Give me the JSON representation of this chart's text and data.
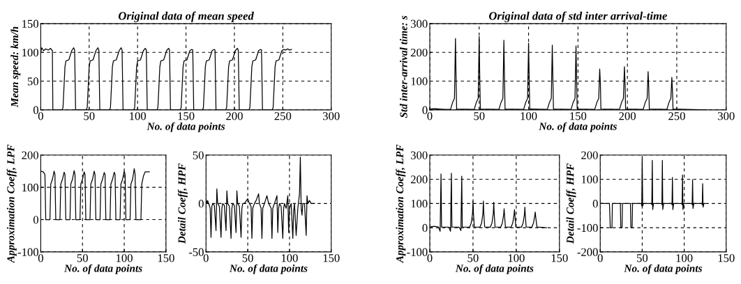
{
  "chart_data": [
    {
      "type": "line",
      "title": "Original data of mean speed",
      "xlabel": "No. of data points",
      "ylabel": "Mean speed: km/h",
      "xlim": [
        0,
        300
      ],
      "ylim": [
        0,
        150
      ],
      "xticks": [
        0,
        50,
        100,
        150,
        200,
        250,
        300
      ],
      "yticks": [
        0,
        50,
        100,
        150
      ],
      "grid": true,
      "line_style": "solid",
      "series": [
        {
          "color": "#000000",
          "x": [
            0,
            1,
            3,
            5,
            8,
            10,
            12,
            12.5,
            22,
            23,
            25,
            26,
            29,
            32,
            34,
            35,
            36,
            47,
            48,
            50,
            51,
            54,
            57,
            59,
            60,
            61,
            71,
            72,
            74,
            75,
            78,
            81,
            83,
            84,
            85,
            96,
            97,
            99,
            100,
            103,
            106,
            108,
            109,
            110,
            120,
            121,
            123,
            124,
            127,
            130,
            132,
            133,
            134,
            144,
            145,
            147,
            148,
            151,
            154,
            156,
            157,
            158,
            167,
            168,
            170,
            171,
            174,
            177,
            179,
            180,
            181,
            191,
            192,
            194,
            195,
            198,
            201,
            203,
            204,
            205,
            215,
            216,
            218,
            219,
            222,
            225,
            227,
            228,
            229,
            239,
            240,
            242,
            243,
            246,
            249,
            251,
            253,
            255,
            257,
            259
          ],
          "values": [
            100,
            108,
            103,
            106,
            104,
            107,
            103,
            0,
            0,
            4,
            75,
            85,
            87,
            103,
            108,
            104,
            0,
            0,
            4,
            75,
            85,
            87,
            103,
            108,
            104,
            0,
            0,
            4,
            75,
            85,
            87,
            103,
            108,
            104,
            0,
            0,
            4,
            75,
            85,
            87,
            103,
            107,
            104,
            0,
            0,
            4,
            75,
            85,
            87,
            103,
            107,
            104,
            0,
            0,
            4,
            75,
            85,
            87,
            103,
            105,
            104,
            0,
            0,
            4,
            75,
            85,
            87,
            103,
            105,
            104,
            0,
            0,
            4,
            75,
            85,
            87,
            103,
            107,
            104,
            0,
            0,
            4,
            75,
            85,
            87,
            103,
            105,
            104,
            0,
            0,
            4,
            75,
            85,
            87,
            103,
            105,
            104,
            106,
            104,
            105
          ]
        }
      ]
    },
    {
      "type": "line",
      "title": "Original data of std inter arrival-time",
      "xlabel": "No. of data points",
      "ylabel": "Std inter-arrival time: s",
      "xlim": [
        0,
        300
      ],
      "ylim": [
        0,
        300
      ],
      "xticks": [
        0,
        50,
        100,
        150,
        200,
        250,
        300
      ],
      "yticks": [
        0,
        100,
        200,
        300
      ],
      "grid": true,
      "line_style": "solid",
      "series": [
        {
          "color": "#000000",
          "x": [
            0,
            5,
            10,
            15,
            21,
            23,
            25,
            26,
            26.7,
            27.2,
            45,
            47,
            49,
            50,
            50.7,
            51.2,
            70,
            72,
            74,
            75,
            75.7,
            76.2,
            95,
            97,
            99,
            100,
            100.7,
            101.2,
            119,
            121,
            123,
            124,
            124.7,
            125.2,
            143,
            145,
            147,
            148,
            148.7,
            149.2,
            167,
            169,
            171,
            172,
            172.7,
            173.2,
            192,
            194,
            196,
            197,
            197.7,
            198.2,
            216,
            218,
            220,
            221,
            221.7,
            222.2,
            240,
            242,
            244,
            245,
            245.7,
            246.2,
            260,
            280
          ],
          "values": [
            3,
            4,
            3,
            2,
            2,
            25,
            40,
            248,
            90,
            3,
            2,
            25,
            40,
            255,
            90,
            3,
            2,
            25,
            40,
            242,
            90,
            3,
            2,
            25,
            40,
            232,
            90,
            3,
            2,
            25,
            40,
            225,
            90,
            3,
            2,
            25,
            40,
            222,
            90,
            3,
            2,
            25,
            40,
            142,
            90,
            3,
            2,
            25,
            40,
            150,
            90,
            3,
            2,
            25,
            40,
            133,
            70,
            3,
            2,
            25,
            40,
            113,
            60,
            3,
            2,
            0
          ]
        }
      ]
    },
    {
      "type": "line",
      "xlabel": "No. of data points",
      "ylabel": "Approximation Coeff, LPF",
      "xlim": [
        0,
        150
      ],
      "ylim": [
        -100,
        200
      ],
      "xticks": [
        0,
        50,
        100,
        150
      ],
      "yticks": [
        -100,
        0,
        100,
        200
      ],
      "grid": true,
      "line_style": "solid",
      "series": [
        {
          "color": "#000000",
          "x": [
            0,
            3,
            5,
            6,
            11,
            12,
            14,
            16,
            17,
            18,
            23,
            24,
            26,
            28,
            29,
            30,
            35,
            36,
            38,
            40,
            41,
            42,
            47,
            48,
            50,
            52,
            53,
            54,
            59,
            60,
            62,
            64,
            65,
            66,
            71,
            72,
            74,
            76,
            77,
            78,
            83,
            84,
            86,
            88,
            89,
            90,
            95,
            96,
            98,
            100,
            101,
            102,
            107,
            108,
            110,
            112,
            113,
            114,
            120,
            121,
            123,
            125,
            130
          ],
          "values": [
            150,
            148,
            140,
            0,
            0,
            110,
            125,
            150,
            140,
            0,
            0,
            110,
            125,
            147,
            140,
            0,
            0,
            110,
            125,
            152,
            140,
            0,
            0,
            110,
            125,
            148,
            140,
            0,
            0,
            110,
            125,
            150,
            140,
            0,
            0,
            110,
            125,
            146,
            140,
            0,
            0,
            110,
            125,
            147,
            140,
            0,
            0,
            110,
            125,
            150,
            140,
            0,
            0,
            110,
            125,
            158,
            140,
            0,
            0,
            110,
            135,
            148,
            148
          ]
        }
      ]
    },
    {
      "type": "line",
      "xlabel": "No. of data points",
      "ylabel": "Detail Coeff, HPF",
      "xlim": [
        0,
        150
      ],
      "ylim": [
        -50,
        50
      ],
      "xticks": [
        0,
        50,
        100,
        150
      ],
      "yticks": [
        -50,
        0,
        50
      ],
      "grid": true,
      "line_style": "solid",
      "series": [
        {
          "color": "#000000",
          "x": [
            0,
            1,
            2,
            3,
            4,
            5,
            6,
            7,
            8,
            10,
            12,
            13,
            14,
            16,
            18,
            19,
            20,
            22,
            24,
            25,
            26,
            28,
            30,
            31,
            32,
            34,
            36,
            37,
            38,
            40,
            42,
            43,
            44,
            46,
            50,
            52,
            54,
            55,
            56,
            58,
            60,
            63,
            64,
            66,
            67,
            68,
            70,
            73,
            75,
            78,
            79,
            80,
            82,
            85,
            86,
            87,
            88,
            90,
            92,
            93,
            94,
            96,
            98,
            99,
            100,
            102,
            104,
            105,
            106,
            108,
            110,
            112,
            113,
            114,
            115,
            116,
            118,
            120,
            121,
            122,
            124,
            126,
            130
          ],
          "values": [
            5,
            0,
            3,
            0,
            -2,
            -5,
            -35,
            -3,
            0,
            -2,
            -28,
            15,
            0,
            -3,
            -35,
            -5,
            0,
            -2,
            -28,
            13,
            0,
            -3,
            -36,
            -5,
            0,
            -2,
            -30,
            13,
            0,
            -3,
            -35,
            -5,
            0,
            0,
            5,
            0,
            -3,
            -36,
            -5,
            0,
            3,
            10,
            0,
            -5,
            -36,
            -5,
            0,
            8,
            0,
            -5,
            -36,
            -5,
            0,
            8,
            -30,
            -5,
            0,
            -3,
            -36,
            -5,
            0,
            -5,
            8,
            -30,
            -5,
            0,
            -36,
            -8,
            0,
            -33,
            -5,
            10,
            48,
            -5,
            -12,
            0,
            0,
            -33,
            8,
            0,
            3,
            0,
            0
          ]
        }
      ]
    },
    {
      "type": "line",
      "xlabel": "No. of data points",
      "ylabel": "Approximation Coeff, LPF",
      "xlim": [
        0,
        150
      ],
      "ylim": [
        -100,
        300
      ],
      "xticks": [
        0,
        50,
        100,
        150
      ],
      "yticks": [
        -100,
        0,
        100,
        200,
        300
      ],
      "grid": true,
      "line_style": "solid",
      "series": [
        {
          "color": "#000000",
          "x": [
            0,
            5,
            10,
            12,
            13,
            13.6,
            22,
            24,
            25,
            25.6,
            34,
            36,
            37,
            37.6,
            46,
            48,
            49.5,
            50,
            50.5,
            51.5,
            58,
            60,
            61.5,
            62,
            62.5,
            63.5,
            70,
            72,
            73.5,
            74,
            74.5,
            75.5,
            82,
            84,
            85.5,
            86,
            86.5,
            87.5,
            94,
            96,
            97.5,
            98,
            98.5,
            99.5,
            106,
            108,
            109.5,
            110,
            110.5,
            111.5,
            118,
            120,
            121.5,
            122,
            122.5,
            124,
            135
          ],
          "values": [
            3,
            6,
            3,
            -15,
            222,
            3,
            2,
            -15,
            225,
            3,
            2,
            -12,
            213,
            3,
            2,
            20,
            60,
            110,
            60,
            3,
            2,
            20,
            60,
            110,
            60,
            3,
            2,
            20,
            60,
            105,
            60,
            3,
            2,
            20,
            55,
            78,
            50,
            3,
            2,
            20,
            55,
            75,
            50,
            3,
            2,
            20,
            55,
            85,
            50,
            3,
            2,
            20,
            50,
            65,
            45,
            3,
            0
          ]
        }
      ]
    },
    {
      "type": "line",
      "xlabel": "No. of data points",
      "ylabel": "Detail Coeff, HPF",
      "xlim": [
        0,
        150
      ],
      "ylim": [
        -200,
        200
      ],
      "xticks": [
        0,
        50,
        100,
        150
      ],
      "yticks": [
        -200,
        -100,
        0,
        100,
        200
      ],
      "grid": true,
      "line_style": "solid",
      "series": [
        {
          "color": "#000000",
          "x": [
            0,
            11,
            12,
            14,
            14.5,
            24,
            24.5,
            26,
            26.5,
            36,
            36.5,
            38,
            38.5,
            49,
            49.5,
            50,
            50.6,
            51.5,
            61,
            61.5,
            62,
            62.5,
            63.5,
            73,
            73.5,
            74,
            74.5,
            75.5,
            85,
            85.5,
            86,
            86.5,
            87.5,
            97,
            97.5,
            98,
            98.5,
            99.5,
            109,
            109.5,
            110,
            110.5,
            111.5,
            121,
            121.5,
            122,
            122.5,
            123.5,
            125
          ],
          "values": [
            0,
            0,
            -100,
            -100,
            0,
            0,
            -100,
            -100,
            0,
            0,
            -100,
            -100,
            0,
            0,
            -10,
            185,
            -10,
            0,
            0,
            -5,
            178,
            -25,
            0,
            0,
            -5,
            178,
            -25,
            0,
            0,
            -5,
            108,
            -25,
            0,
            0,
            -5,
            118,
            -25,
            0,
            0,
            -5,
            98,
            -20,
            0,
            0,
            -5,
            82,
            -15,
            0,
            0
          ]
        }
      ]
    }
  ]
}
